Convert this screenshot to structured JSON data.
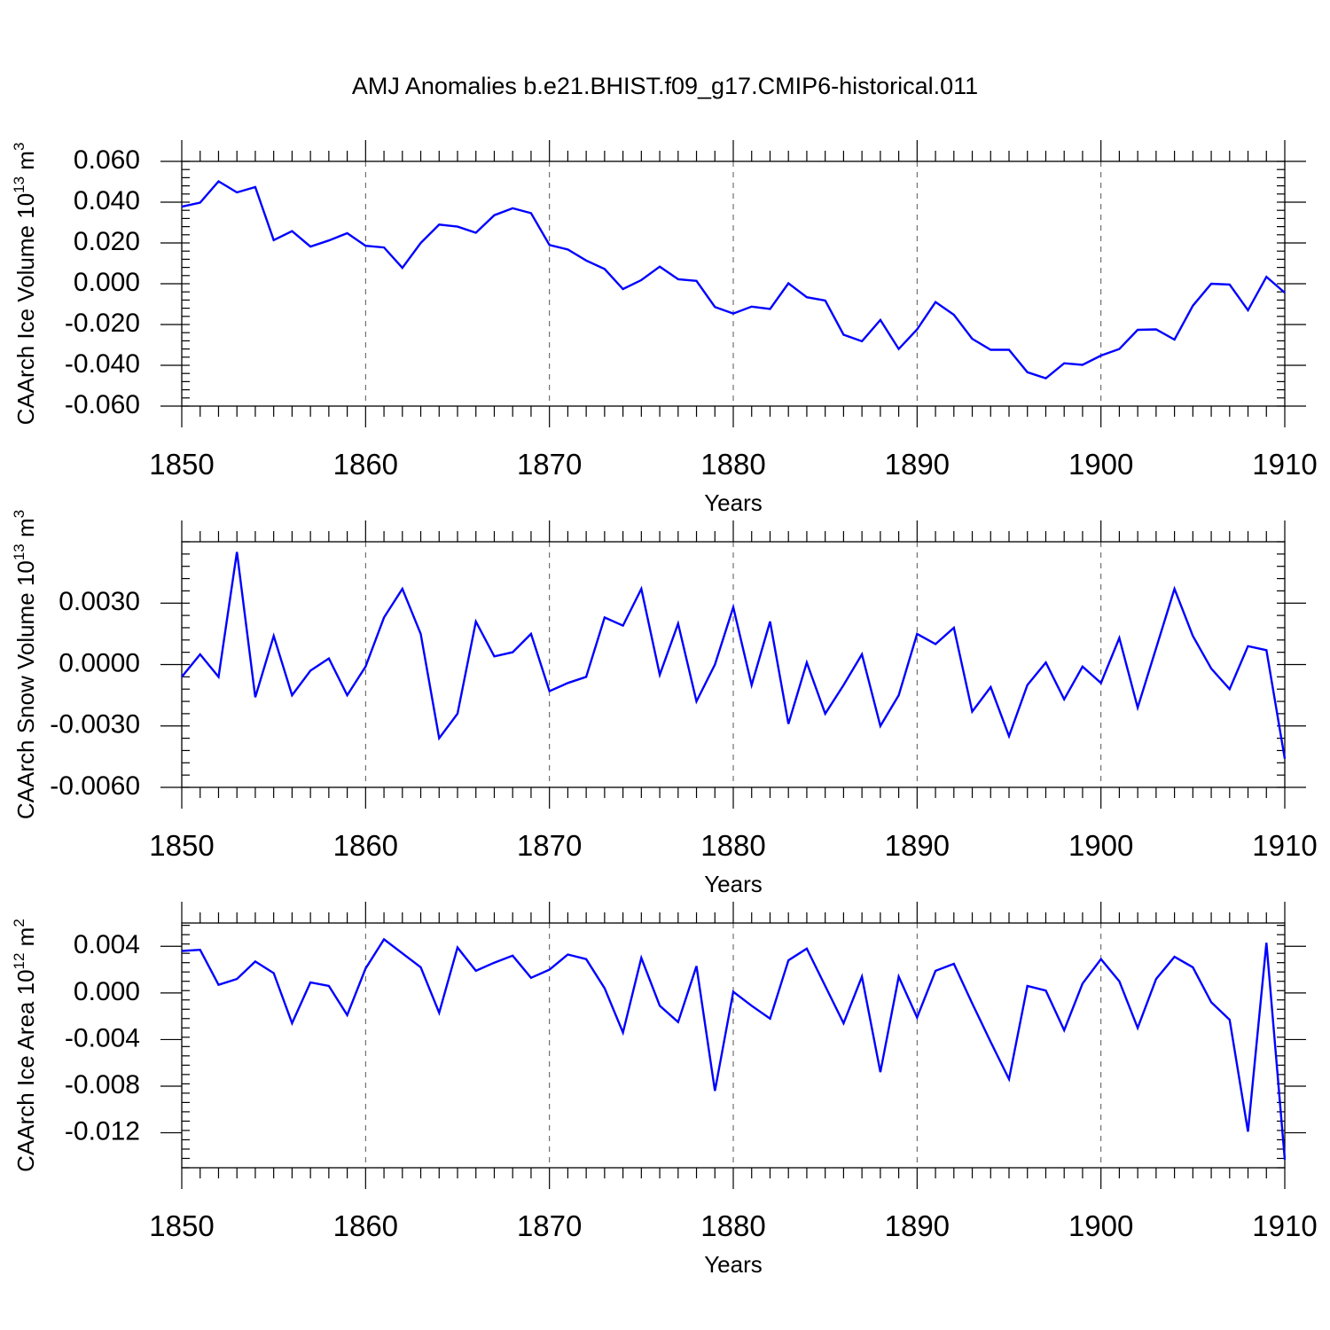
{
  "title": "AMJ Anomalies b.e21.BHIST.f09_g17.CMIP6-historical.011",
  "colors": {
    "line": "#0000ff",
    "axis": "#000000"
  },
  "chart_data": [
    {
      "type": "line",
      "xlabel": "Years",
      "ylabel_base": "CAArch Ice Volume 10",
      "ylabel_exp": "13",
      "ylabel_unit": " m",
      "ylabel_unit_exp": "3",
      "xlim": [
        1850,
        1910
      ],
      "ylim": [
        -0.06,
        0.06
      ],
      "yticks": [
        -0.06,
        -0.04,
        -0.02,
        0.0,
        0.02,
        0.04,
        0.06
      ],
      "ytick_labels": [
        "-0.060",
        "-0.040",
        "-0.020",
        "0.000",
        "0.020",
        "0.040",
        "0.060"
      ],
      "xticks": [
        1850,
        1860,
        1870,
        1880,
        1890,
        1900,
        1910
      ],
      "xtick_labels": [
        "1850",
        "1860",
        "1870",
        "1880",
        "1890",
        "1900",
        "1910"
      ],
      "series": [
        {
          "x_start": 1850,
          "values": [
            0.0378,
            0.0398,
            0.0502,
            0.0448,
            0.0474,
            0.0214,
            0.0258,
            0.0182,
            0.0212,
            0.0248,
            0.0186,
            0.0178,
            0.0078,
            0.02,
            0.029,
            0.028,
            0.025,
            0.0336,
            0.037,
            0.0346,
            0.019,
            0.0168,
            0.0114,
            0.0072,
            -0.0026,
            0.0018,
            0.0084,
            0.0022,
            0.0014,
            -0.0114,
            -0.0146,
            -0.0112,
            -0.0124,
            0.0002,
            -0.0066,
            -0.0082,
            -0.025,
            -0.0282,
            -0.0178,
            -0.032,
            -0.0224,
            -0.009,
            -0.0152,
            -0.027,
            -0.0324,
            -0.0324,
            -0.0434,
            -0.0464,
            -0.039,
            -0.0398,
            -0.0352,
            -0.032,
            -0.0226,
            -0.0224,
            -0.0274,
            -0.0108,
            0.0,
            -0.0004,
            -0.013,
            0.0034,
            -0.0044
          ]
        }
      ]
    },
    {
      "type": "line",
      "xlabel": "Years",
      "ylabel_base": "CAArch Snow Volume 10",
      "ylabel_exp": "13",
      "ylabel_unit": " m",
      "ylabel_unit_exp": "3",
      "xlim": [
        1850,
        1910
      ],
      "ylim": [
        -0.006,
        0.006
      ],
      "yticks": [
        -0.006,
        -0.003,
        0.0,
        0.003
      ],
      "ytick_labels": [
        "-0.0060",
        "-0.0030",
        "0.0000",
        "0.0030"
      ],
      "xticks": [
        1850,
        1860,
        1870,
        1880,
        1890,
        1900,
        1910
      ],
      "xtick_labels": [
        "1850",
        "1860",
        "1870",
        "1880",
        "1890",
        "1900",
        "1910"
      ],
      "series": [
        {
          "x_start": 1850,
          "values": [
            -0.0006,
            0.0005,
            -0.0006,
            0.0055,
            -0.0016,
            0.0014,
            -0.0015,
            -0.0003,
            0.0003,
            -0.0015,
            -0.0001,
            0.0023,
            0.0037,
            0.0015,
            -0.0036,
            -0.0024,
            0.0021,
            0.0004,
            0.0006,
            0.0015,
            -0.0013,
            -0.0009,
            -0.0006,
            0.0023,
            0.0019,
            0.0037,
            -0.0005,
            0.002,
            -0.0018,
            0.0,
            0.0028,
            -0.001,
            0.0021,
            -0.0029,
            0.0001,
            -0.0024,
            -0.001,
            0.0005,
            -0.003,
            -0.0015,
            0.0015,
            0.001,
            0.0018,
            -0.0023,
            -0.0011,
            -0.0035,
            -0.001,
            0.0001,
            -0.0017,
            -0.0001,
            -0.0009,
            0.0013,
            -0.0021,
            0.0008,
            0.0037,
            0.0014,
            -0.0002,
            -0.0012,
            0.0009,
            0.0007,
            -0.0046
          ]
        }
      ]
    },
    {
      "type": "line",
      "xlabel": "Years",
      "ylabel_base": "CAArch Ice Area 10",
      "ylabel_exp": "12",
      "ylabel_unit": " m",
      "ylabel_unit_exp": "2",
      "xlim": [
        1850,
        1910
      ],
      "ylim": [
        -0.015,
        0.006
      ],
      "yticks": [
        -0.012,
        -0.008,
        -0.004,
        0.0,
        0.004
      ],
      "ytick_labels": [
        "-0.012",
        "-0.008",
        "-0.004",
        "0.000",
        "0.004"
      ],
      "xticks": [
        1850,
        1860,
        1870,
        1880,
        1890,
        1900,
        1910
      ],
      "xtick_labels": [
        "1850",
        "1860",
        "1870",
        "1880",
        "1890",
        "1900",
        "1910"
      ],
      "series": [
        {
          "x_start": 1850,
          "values": [
            0.0036,
            0.0037,
            0.0007,
            0.0012,
            0.0027,
            0.0017,
            -0.0026,
            0.0009,
            0.0006,
            -0.0019,
            0.0021,
            0.0046,
            0.0034,
            0.0022,
            -0.0017,
            0.0039,
            0.0019,
            0.0026,
            0.0032,
            0.0013,
            0.002,
            0.0033,
            0.0029,
            0.0004,
            -0.0034,
            0.003,
            -0.0011,
            -0.0025,
            0.0023,
            -0.0084,
            0.0001,
            -0.0011,
            -0.0022,
            0.0028,
            0.0038,
            0.0006,
            -0.0026,
            0.0014,
            -0.0068,
            0.0014,
            -0.0021,
            0.0019,
            0.0025,
            -0.0009,
            -0.0042,
            -0.0074,
            0.0006,
            0.0002,
            -0.0032,
            0.0008,
            0.0029,
            0.001,
            -0.003,
            0.0012,
            0.0031,
            0.0022,
            -0.0008,
            -0.0023,
            -0.0119,
            0.0043,
            -0.0143
          ]
        }
      ]
    }
  ]
}
